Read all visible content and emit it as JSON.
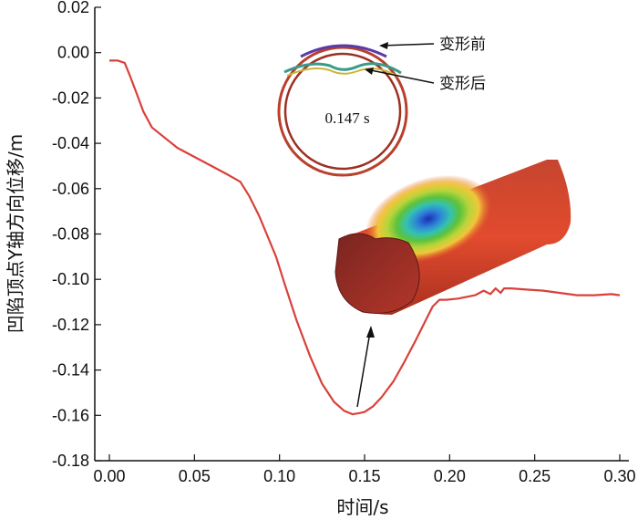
{
  "chart_data": {
    "type": "line",
    "xlabel": "时间/s",
    "ylabel": "凹陷顶点Y轴方向位移/m",
    "xlim": [
      0.0,
      0.3
    ],
    "ylim": [
      -0.18,
      0.02
    ],
    "xticks": [
      "0.00",
      "0.05",
      "0.10",
      "0.15",
      "0.20",
      "0.25",
      "0.30"
    ],
    "yticks": [
      "0.02",
      "0.00",
      "-0.02",
      "-0.04",
      "-0.06",
      "-0.08",
      "-0.10",
      "-0.12",
      "-0.14",
      "-0.16",
      "-0.18"
    ],
    "grid": false,
    "series": [
      {
        "color": "#d9413a",
        "x": [
          0.0,
          0.005,
          0.009,
          0.012,
          0.016,
          0.02,
          0.025,
          0.03,
          0.04,
          0.05,
          0.06,
          0.07,
          0.077,
          0.082,
          0.088,
          0.093,
          0.098,
          0.103,
          0.11,
          0.118,
          0.125,
          0.132,
          0.138,
          0.143,
          0.147,
          0.15,
          0.155,
          0.16,
          0.167,
          0.173,
          0.18,
          0.186,
          0.19,
          0.194,
          0.198,
          0.205,
          0.215,
          0.22,
          0.224,
          0.227,
          0.23,
          0.232,
          0.236,
          0.245,
          0.255,
          0.265,
          0.275,
          0.285,
          0.295,
          0.3
        ],
        "y": [
          -0.0035,
          -0.0035,
          -0.0045,
          -0.01,
          -0.018,
          -0.026,
          -0.033,
          -0.036,
          -0.042,
          -0.046,
          -0.05,
          -0.054,
          -0.057,
          -0.063,
          -0.072,
          -0.081,
          -0.09,
          -0.102,
          -0.118,
          -0.134,
          -0.146,
          -0.154,
          -0.158,
          -0.1595,
          -0.159,
          -0.1585,
          -0.156,
          -0.152,
          -0.145,
          -0.137,
          -0.127,
          -0.118,
          -0.112,
          -0.109,
          -0.109,
          -0.1085,
          -0.107,
          -0.105,
          -0.1065,
          -0.104,
          -0.106,
          -0.104,
          -0.104,
          -0.1045,
          -0.105,
          -0.106,
          -0.107,
          -0.107,
          -0.1065,
          -0.107
        ]
      }
    ],
    "inset_annotations": {
      "before_label": "变形前",
      "after_label": "变形后",
      "time_label": "0.147 s"
    }
  }
}
